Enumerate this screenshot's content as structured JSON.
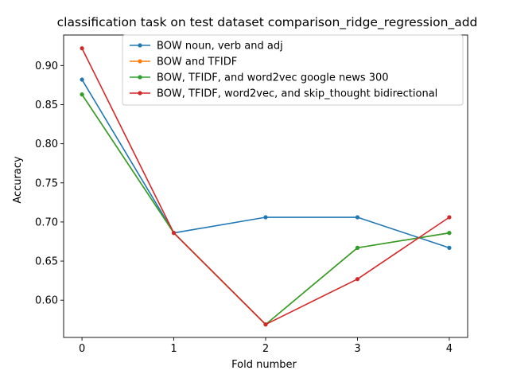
{
  "chart_data": {
    "type": "line",
    "title": "classification task on test dataset comparison_ridge_regression_add",
    "xlabel": "Fold number",
    "ylabel": "Accuracy",
    "x": [
      0,
      1,
      2,
      3,
      4
    ],
    "xticks": [
      "0",
      "1",
      "2",
      "3",
      "4"
    ],
    "xlim": [
      -0.2,
      4.2
    ],
    "yticks": [
      "0.60",
      "0.65",
      "0.70",
      "0.75",
      "0.80",
      "0.85",
      "0.90"
    ],
    "ylim": [
      0.5524,
      0.939
    ],
    "grid": false,
    "legend_position": "top-right",
    "series": [
      {
        "name": "BOW noun, verb and adj",
        "color": "#1f77b4",
        "values": [
          0.882,
          0.686,
          0.706,
          0.706,
          0.667
        ]
      },
      {
        "name": "BOW and TFIDF",
        "color": "#ff7f0e",
        "values": [
          0.863,
          0.686,
          0.569,
          0.667,
          0.686
        ]
      },
      {
        "name": "BOW, TFIDF, and word2vec google news 300",
        "color": "#2ca02c",
        "values": [
          0.863,
          0.686,
          0.569,
          0.667,
          0.686
        ]
      },
      {
        "name": "BOW, TFIDF, word2vec, and skip_thought bidirectional",
        "color": "#d62728",
        "values": [
          0.922,
          0.686,
          0.569,
          0.627,
          0.706
        ]
      }
    ]
  }
}
